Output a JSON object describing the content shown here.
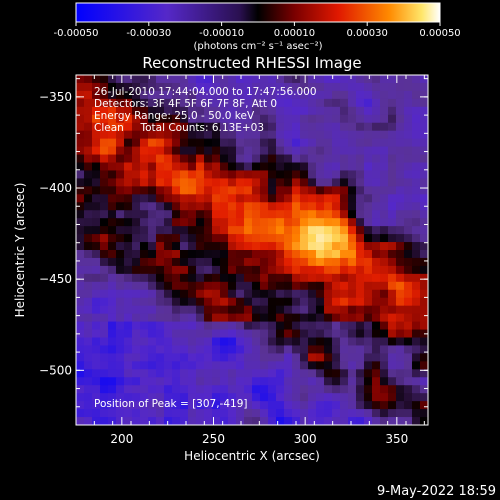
{
  "colorbar": {
    "ticks": [
      "-0.00050",
      "-0.00030",
      "-0.00010",
      "0.00010",
      "0.00030",
      "0.00050"
    ],
    "tick_values": [
      -0.0005,
      -0.0003,
      -0.0001,
      0.0001,
      0.0003,
      0.0005
    ],
    "units": "(photons cm⁻² s⁻¹ asec⁻²)",
    "range": [
      -0.0005,
      0.0005
    ]
  },
  "annotations": {
    "time_range": "26-Jul-2010 17:44:04.000 to 17:47:56.000",
    "detectors": "Detectors: 3F 4F 5F 6F 7F 8F, Att 0",
    "energy": "Energy Range: 25.0 - 50.0 keV",
    "clean": "Clean     Total Counts: 6.13E+03",
    "peak": "Position of Peak = [307,-419]"
  },
  "footer": {
    "date": "9-May-2022 18:59"
  },
  "chart_data": {
    "type": "heatmap",
    "title": "Reconstructed RHESSI Image",
    "xlabel": "Heliocentric X (arcsec)",
    "ylabel": "Heliocentric Y (arcsec)",
    "xlim": [
      175,
      367
    ],
    "ylim": [
      -530,
      -338
    ],
    "xticks": [
      200,
      250,
      300,
      350
    ],
    "yticks": [
      -350,
      -400,
      -450,
      -500
    ],
    "colormap": "blue-purple-black-red-yellow-white",
    "colors": {
      "negative_max": "#0000ff",
      "zero": "#000000",
      "positive_mid": "#ff3300",
      "positive_max": "#ffffff"
    },
    "peak_position": [
      307,
      -419
    ],
    "grid": false
  }
}
